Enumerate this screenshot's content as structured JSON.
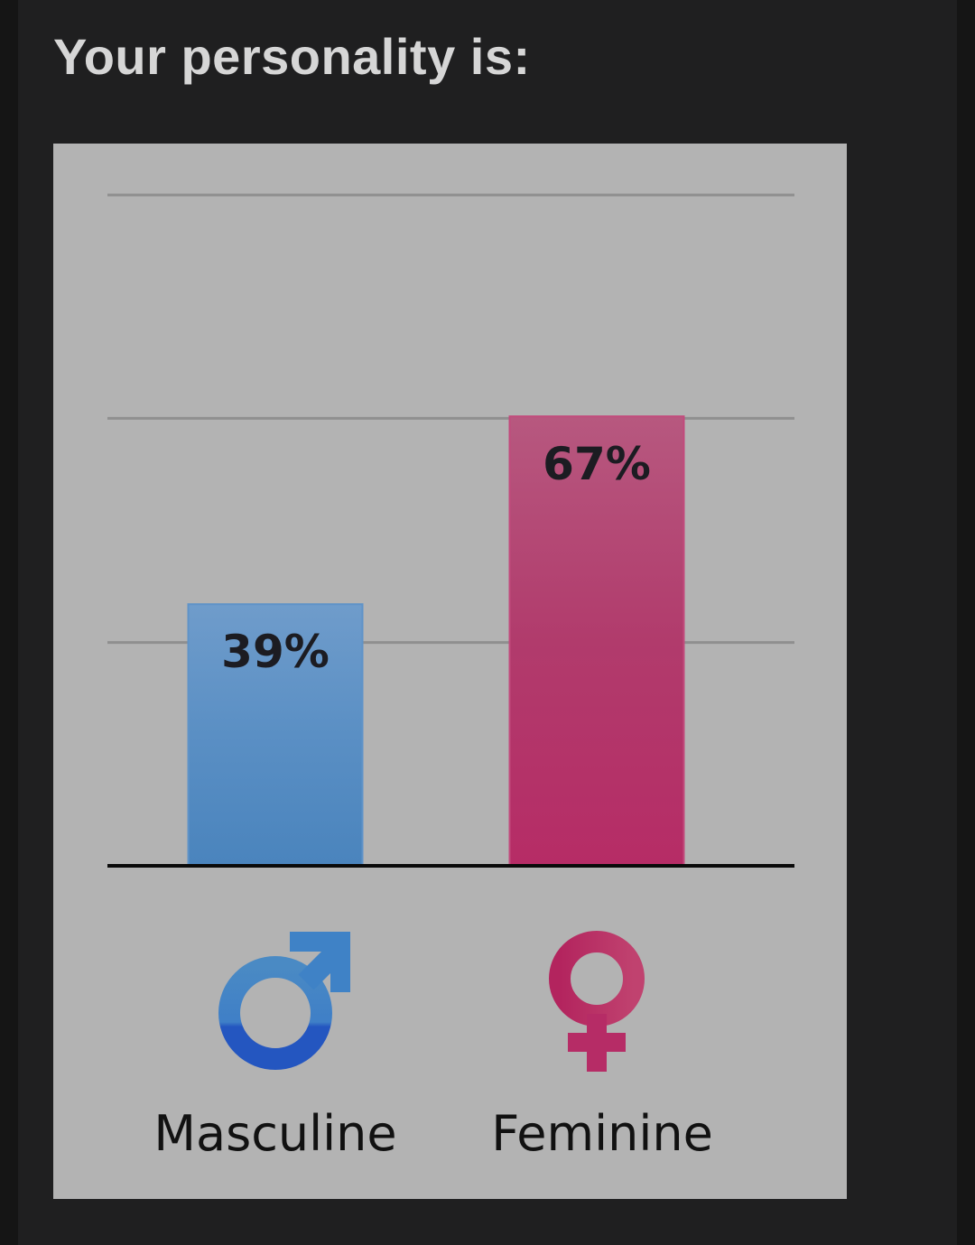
{
  "header": {
    "title": "Your personality is:"
  },
  "chart_data": {
    "type": "bar",
    "title": "",
    "xlabel": "",
    "ylabel": "",
    "ylim": [
      0,
      100
    ],
    "grid": true,
    "gridlines": [
      33.3,
      66.7,
      100
    ],
    "categories": [
      "Masculine",
      "Feminine"
    ],
    "values": [
      39,
      67
    ],
    "data_labels": [
      "39%",
      "67%"
    ],
    "category_icons": [
      "male-symbol-icon",
      "female-symbol-icon"
    ],
    "colors": [
      "#4a84bd",
      "#b62c66"
    ]
  }
}
